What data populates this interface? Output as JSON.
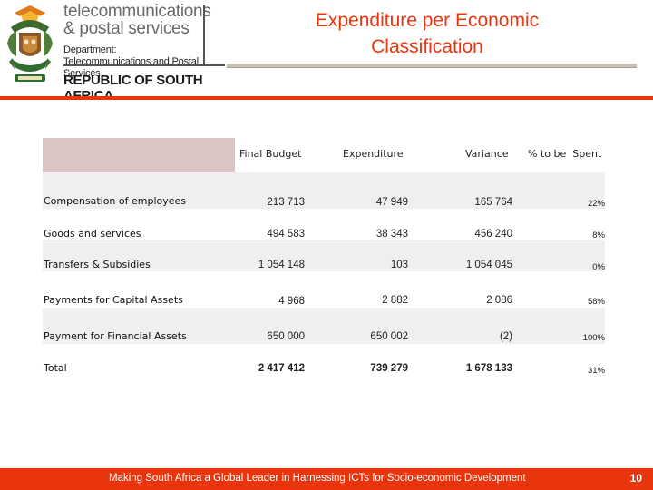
{
  "header": {
    "brand_line1": "telecommunications",
    "brand_line2": "& postal services",
    "dept_label": "Department:",
    "dept_name": "Telecommunications and Postal Services",
    "country": "REPUBLIC OF SOUTH AFRICA",
    "title_line1": "Expenditure per Economic",
    "title_line2": "Classification"
  },
  "table": {
    "columns": [
      "Final Budget",
      "Expenditure",
      "Variance",
      "% to be  Spent"
    ],
    "rows": [
      {
        "label": "Compensation of employees",
        "final_budget": "213 713",
        "expenditure": "47 949",
        "variance": "165 764",
        "pct": "22%"
      },
      {
        "label": "Goods and services",
        "final_budget": "494 583",
        "expenditure": "38 343",
        "variance": "456 240",
        "pct": "8%"
      },
      {
        "label": "Transfers & Subsidies",
        "final_budget": "1 054 148",
        "expenditure": "103",
        "variance": "1 054 045",
        "pct": "0%"
      },
      {
        "label": "Payments for Capital Assets",
        "final_budget": "4 968",
        "expenditure": "2 882",
        "variance": "2 086",
        "pct": "58%"
      },
      {
        "label": "Payment for Financial Assets",
        "final_budget": "650 000",
        "expenditure": "650 002",
        "variance": "(2)",
        "pct": "100%"
      },
      {
        "label": "Total",
        "final_budget": "2 417 412",
        "expenditure": "739 279",
        "variance": "1 678 133",
        "pct": "31%"
      }
    ]
  },
  "footer": {
    "tagline": "Making South Africa a Global Leader in Harnessing ICTs for Socio-economic Development",
    "page_number": "10"
  },
  "colors": {
    "accent": "#e8350e",
    "header_band": "#d9c6c4",
    "row_shade": "#efefef"
  }
}
